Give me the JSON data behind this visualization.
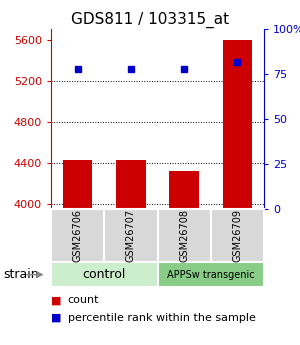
{
  "title": "GDS811 / 103315_at",
  "samples": [
    "GSM26706",
    "GSM26707",
    "GSM26708",
    "GSM26709"
  ],
  "counts": [
    4430,
    4430,
    4320,
    5600
  ],
  "percentiles": [
    78,
    78,
    78,
    82
  ],
  "ylim_left": [
    3950,
    5700
  ],
  "ylim_right": [
    0,
    100
  ],
  "yticks_left": [
    4000,
    4400,
    4800,
    5200,
    5600
  ],
  "yticks_right": [
    0,
    25,
    50,
    75,
    100
  ],
  "bar_color": "#cc0000",
  "dot_color": "#0000cc",
  "bar_width": 0.55,
  "groups": [
    {
      "label": "control",
      "samples": [
        0,
        1
      ]
    },
    {
      "label": "APPSw transgenic",
      "samples": [
        2,
        3
      ]
    }
  ],
  "group_box_color_light": "#cceecc",
  "group_box_color_dark": "#88cc88",
  "sample_box_color": "#d8d8d8",
  "background_color": "#ffffff",
  "left_axis_color": "#cc0000",
  "right_axis_color": "#0000cc",
  "strain_label": "strain",
  "legend_count_label": "count",
  "legend_pct_label": "percentile rank within the sample"
}
